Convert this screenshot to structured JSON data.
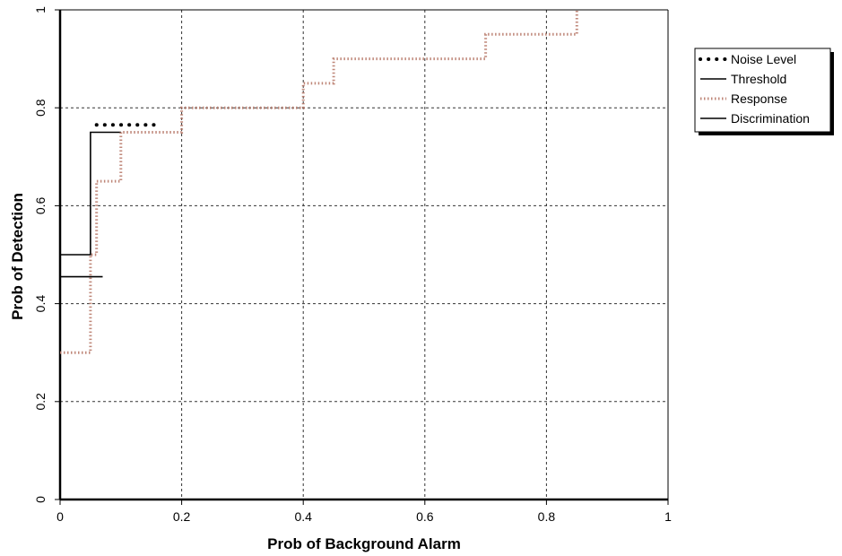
{
  "chart_data": {
    "type": "line",
    "xlabel": "Prob of Background Alarm",
    "ylabel": "Prob of Detection",
    "xlim": [
      0,
      1
    ],
    "ylim": [
      0,
      1
    ],
    "x_ticks": [
      0,
      0.2,
      0.4,
      0.6,
      0.8,
      1
    ],
    "y_ticks": [
      0,
      0.2,
      0.4,
      0.6,
      0.8,
      1
    ],
    "x_tick_labels": [
      "0",
      "0.2",
      "0.4",
      "0.6",
      "0.8",
      "1"
    ],
    "y_tick_labels": [
      "0",
      "0.2",
      "0.4",
      "0.6",
      "0.8",
      "1"
    ],
    "grid": true,
    "legend_position": "right",
    "series": [
      {
        "name": "Noise Level",
        "style": "dotted-bold",
        "color": "#000000",
        "points": [
          [
            0.06,
            0.765
          ],
          [
            0.16,
            0.765
          ]
        ]
      },
      {
        "name": "Threshold",
        "style": "solid",
        "color": "#000000",
        "points": [
          [
            0,
            0.5
          ],
          [
            0.05,
            0.5
          ],
          [
            0.05,
            0.75
          ],
          [
            0.1,
            0.75
          ]
        ]
      },
      {
        "name": "Response",
        "style": "dotted",
        "color": "#b87a6a",
        "points": [
          [
            0,
            0.3
          ],
          [
            0.05,
            0.3
          ],
          [
            0.05,
            0.5
          ],
          [
            0.06,
            0.5
          ],
          [
            0.06,
            0.65
          ],
          [
            0.1,
            0.65
          ],
          [
            0.1,
            0.75
          ],
          [
            0.2,
            0.75
          ],
          [
            0.2,
            0.8
          ],
          [
            0.4,
            0.8
          ],
          [
            0.4,
            0.85
          ],
          [
            0.45,
            0.85
          ],
          [
            0.45,
            0.9
          ],
          [
            0.7,
            0.9
          ],
          [
            0.7,
            0.95
          ],
          [
            0.85,
            0.95
          ],
          [
            0.85,
            1
          ]
        ]
      },
      {
        "name": "Discrimination",
        "style": "solid",
        "color": "#000000",
        "points": [
          [
            0,
            0.455
          ],
          [
            0.07,
            0.455
          ]
        ]
      }
    ]
  }
}
